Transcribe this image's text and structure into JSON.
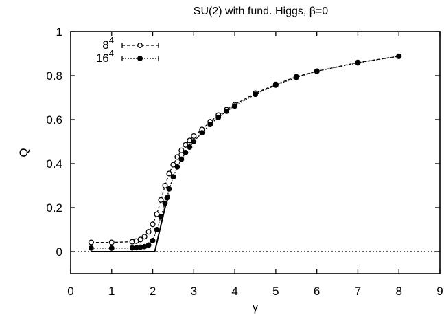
{
  "chart_data": {
    "type": "line",
    "title": "SU(2) with fund. Higgs, β=0",
    "xlabel": "γ",
    "ylabel": "Q",
    "xlim": [
      0,
      9
    ],
    "ylim": [
      -0.1,
      1
    ],
    "xticks": [
      0,
      1,
      2,
      3,
      4,
      5,
      6,
      7,
      8,
      9
    ],
    "yticks": [
      0,
      0.2,
      0.4,
      0.6,
      0.8,
      1
    ],
    "xtick_labels": [
      "0",
      "1",
      "2",
      "3",
      "4",
      "5",
      "6",
      "7",
      "8",
      "9"
    ],
    "ytick_labels": [
      "0",
      "0.2",
      "0.4",
      "0.6",
      "0.8",
      "1"
    ],
    "grid": false,
    "legend_position": "top-left",
    "series": [
      {
        "name": "8⁴",
        "base": "8",
        "exp": "4",
        "marker": "open-circle",
        "line": "dashed",
        "x": [
          0.5,
          1.0,
          1.5,
          1.6,
          1.7,
          1.8,
          1.9,
          2.0,
          2.1,
          2.2,
          2.3,
          2.4,
          2.5,
          2.6,
          2.7,
          2.8,
          2.9,
          3.0,
          3.2,
          3.4,
          3.6,
          3.8,
          4.0,
          4.5,
          5.0,
          5.5,
          6.0,
          7.0,
          8.0
        ],
        "y": [
          0.042,
          0.042,
          0.045,
          0.048,
          0.055,
          0.068,
          0.09,
          0.124,
          0.17,
          0.235,
          0.3,
          0.355,
          0.395,
          0.43,
          0.46,
          0.485,
          0.505,
          0.525,
          0.555,
          0.59,
          0.62,
          0.645,
          0.668,
          0.72,
          0.76,
          0.795,
          0.82,
          0.86,
          0.888
        ]
      },
      {
        "name": "16⁴",
        "base": "16",
        "exp": "4",
        "marker": "filled-circle",
        "line": "dotted",
        "x": [
          0.5,
          1.0,
          1.5,
          1.6,
          1.7,
          1.8,
          1.9,
          2.0,
          2.1,
          2.2,
          2.3,
          2.35,
          2.4,
          2.5,
          2.6,
          2.7,
          2.8,
          2.9,
          3.0,
          3.2,
          3.4,
          3.6,
          3.8,
          4.0,
          4.5,
          5.0,
          5.5,
          6.0,
          7.0,
          8.0
        ],
        "y": [
          0.016,
          0.016,
          0.017,
          0.018,
          0.02,
          0.023,
          0.03,
          0.05,
          0.1,
          0.16,
          0.22,
          0.245,
          0.285,
          0.34,
          0.385,
          0.42,
          0.45,
          0.475,
          0.5,
          0.54,
          0.578,
          0.61,
          0.638,
          0.662,
          0.715,
          0.757,
          0.792,
          0.82,
          0.858,
          0.888
        ]
      },
      {
        "name": "",
        "marker": "none",
        "line": "solid",
        "x": [
          0.5,
          2.05,
          2.1,
          2.2,
          2.3,
          2.4
        ],
        "y": [
          0.0,
          0.0,
          0.04,
          0.12,
          0.2,
          0.26
        ]
      }
    ]
  }
}
